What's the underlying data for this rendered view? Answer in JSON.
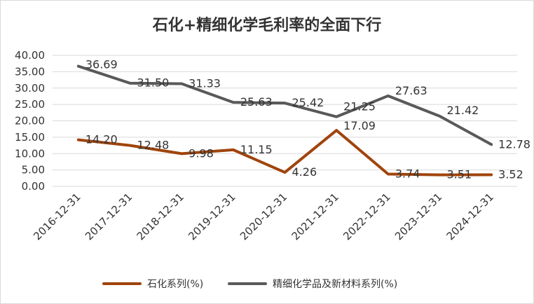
{
  "chart_data": {
    "type": "line",
    "title": "石化+精细化学毛利率的全面下行",
    "categories": [
      "2016-12-31",
      "2017-12-31",
      "2018-12-31",
      "2019-12-31",
      "2020-12-31",
      "2021-12-31",
      "2022-12-31",
      "2023-12-31",
      "2024-12-31"
    ],
    "y_ticks": [
      "0.00",
      "5.00",
      "10.00",
      "15.00",
      "20.00",
      "25.00",
      "30.00",
      "35.00",
      "40.00"
    ],
    "ylim": [
      0,
      40
    ],
    "grid": true,
    "legend_position": "bottom",
    "series": [
      {
        "name": "石化系列(%)",
        "color": "#a0440c",
        "values": [
          14.2,
          12.48,
          9.98,
          11.15,
          4.26,
          17.09,
          3.74,
          3.51,
          3.52
        ],
        "labels": [
          "14.20",
          "12.48",
          "9.98",
          "11.15",
          "4.26",
          "17.09",
          "3.74",
          "3.51",
          "3.52"
        ]
      },
      {
        "name": "精细化学品及新材料系列(%)",
        "color": "#595959",
        "values": [
          36.69,
          31.5,
          31.33,
          25.63,
          25.42,
          21.25,
          27.63,
          21.42,
          12.78
        ],
        "labels": [
          "36.69",
          "31.50",
          "31.33",
          "25.63",
          "25.42",
          "21.25",
          "27.63",
          "21.42",
          "12.78"
        ]
      }
    ]
  }
}
